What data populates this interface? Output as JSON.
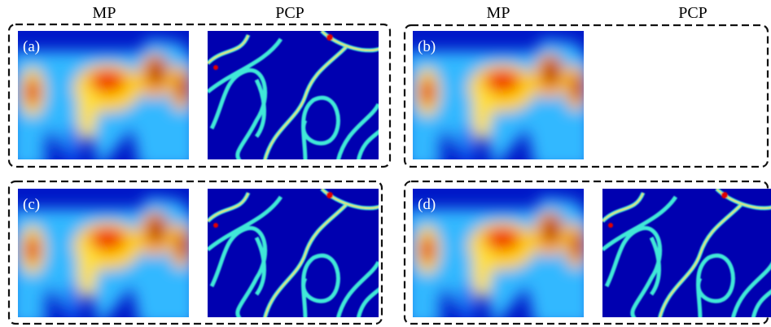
{
  "columns": [
    "MP",
    "PCP",
    "MP",
    "PCP"
  ],
  "panels": [
    "(a)",
    "(b)",
    "(c)",
    "(d)"
  ]
}
